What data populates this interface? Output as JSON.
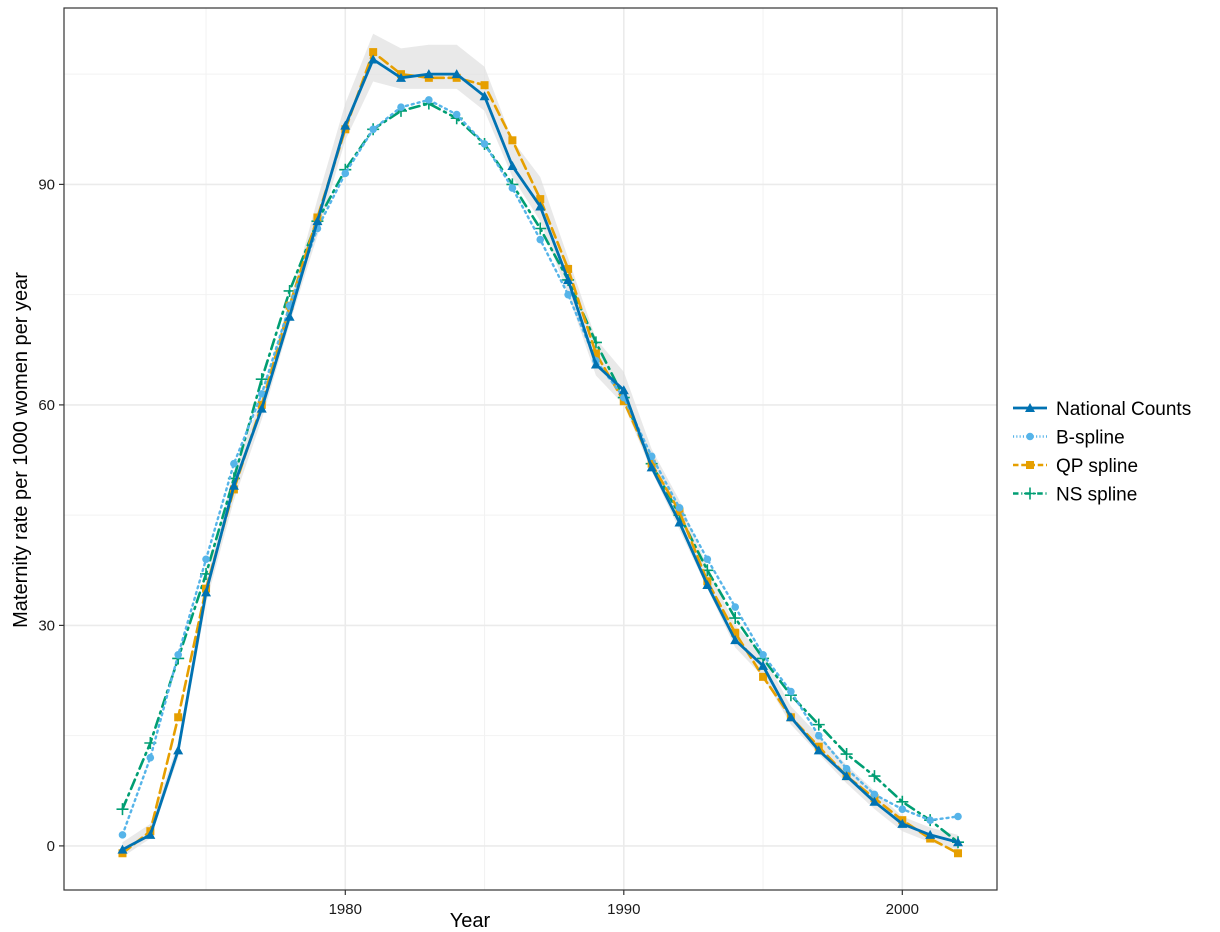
{
  "chart_data": {
    "type": "line",
    "title": "",
    "xlabel": "Year",
    "ylabel": "Maternity rate per 1000 women per year",
    "xlim": [
      1969.9,
      2003.4
    ],
    "ylim": [
      -6,
      114
    ],
    "x_ticks": [
      1980,
      1990,
      2000
    ],
    "y_ticks": [
      0,
      30,
      60,
      90
    ],
    "x_tick_labels": [
      "1980",
      "1990",
      "2000"
    ],
    "y_tick_labels": [
      "0",
      "30",
      "60",
      "90"
    ],
    "grid": true,
    "legend_position": "right",
    "x": [
      1972,
      1973,
      1974,
      1975,
      1976,
      1977,
      1978,
      1979,
      1980,
      1981,
      1982,
      1983,
      1984,
      1985,
      1986,
      1987,
      1988,
      1989,
      1990,
      1991,
      1992,
      1993,
      1994,
      1995,
      1996,
      1997,
      1998,
      1999,
      2000,
      2001,
      2002
    ],
    "ribbon": {
      "color": "#dddddd",
      "lower": [
        -1.5,
        1,
        12,
        33,
        47,
        58,
        71,
        83,
        96,
        104,
        103,
        103,
        103,
        100,
        91,
        85,
        75,
        64,
        60,
        51,
        43,
        35,
        27,
        23,
        16.5,
        12.5,
        8.5,
        5,
        2,
        0.5,
        -0.5
      ],
      "upper": [
        0.5,
        3,
        14,
        36,
        51,
        61,
        74,
        88,
        101,
        110.5,
        108.5,
        109,
        109,
        106,
        96,
        91,
        80,
        69,
        64.5,
        54,
        47,
        38,
        30,
        26,
        19,
        15,
        11,
        7.5,
        4,
        2.5,
        1.5
      ]
    },
    "series": [
      {
        "name": "National Counts",
        "color": "#0072B2",
        "dash": "",
        "marker": "triangle",
        "width": 2.8,
        "values": [
          -0.5,
          1.5,
          13,
          34.5,
          49,
          59.5,
          72,
          85,
          98,
          107,
          104.5,
          105,
          105,
          102,
          92.5,
          87,
          77,
          65.5,
          62,
          51.5,
          44,
          35.5,
          28,
          24.5,
          17.5,
          13,
          9.5,
          6,
          3,
          1.5,
          0.5
        ]
      },
      {
        "name": "B-spline",
        "color": "#56B4E9",
        "dash": "2 4",
        "marker": "circle",
        "width": 2.4,
        "values": [
          1.5,
          12,
          26,
          39,
          52,
          61.5,
          73.5,
          84,
          91.5,
          97.5,
          100.5,
          101.5,
          99.5,
          95.5,
          89.5,
          82.5,
          75,
          66,
          61,
          53,
          46,
          39,
          32.5,
          26,
          21,
          15,
          10.5,
          7,
          5,
          3.5,
          4
        ]
      },
      {
        "name": "QP spline",
        "color": "#E69F00",
        "dash": "10 5",
        "marker": "square",
        "width": 2.6,
        "values": [
          -1,
          2,
          17.5,
          35,
          48.5,
          60,
          73.5,
          85.5,
          97.5,
          108,
          105,
          104.5,
          104.5,
          103.5,
          96,
          88,
          78.5,
          67,
          60.5,
          52,
          45.5,
          36,
          29,
          23,
          17.5,
          13.5,
          9.5,
          6.5,
          3.5,
          1,
          -1
        ]
      },
      {
        "name": "NS spline",
        "color": "#009E73",
        "dash": "10 5 2 5",
        "marker": "plus",
        "width": 2.6,
        "values": [
          5,
          14,
          25.5,
          37,
          50,
          63.5,
          75.5,
          85,
          92,
          97.5,
          100,
          101,
          99,
          95.5,
          90,
          84,
          77,
          68.5,
          61,
          52,
          45,
          37.5,
          31,
          25.5,
          20.5,
          16.5,
          12.5,
          9.5,
          6,
          3.5,
          0.5
        ]
      }
    ]
  }
}
